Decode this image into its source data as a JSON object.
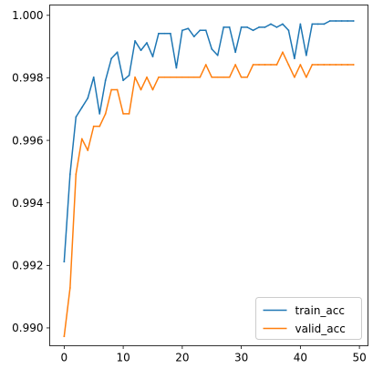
{
  "chart_data": {
    "type": "line",
    "title": "",
    "xlabel": "",
    "ylabel": "",
    "xlim": [
      -2.45,
      51.45
    ],
    "ylim": [
      0.98943,
      1.00033
    ],
    "xticks": [
      0,
      10,
      20,
      30,
      40,
      50
    ],
    "xtick_labels": [
      "0",
      "10",
      "20",
      "30",
      "40",
      "50"
    ],
    "yticks": [
      0.99,
      0.992,
      0.994,
      0.996,
      0.998,
      1.0
    ],
    "ytick_labels": [
      "0.990",
      "0.992",
      "0.994",
      "0.996",
      "0.998",
      "1.000"
    ],
    "grid": false,
    "legend_position": "lower right",
    "x": [
      0,
      1,
      2,
      3,
      4,
      5,
      6,
      7,
      8,
      9,
      10,
      11,
      12,
      13,
      14,
      15,
      16,
      17,
      18,
      19,
      20,
      21,
      22,
      23,
      24,
      25,
      26,
      27,
      28,
      29,
      30,
      31,
      32,
      33,
      34,
      35,
      36,
      37,
      38,
      39,
      40,
      41,
      42,
      43,
      44,
      45,
      46,
      47,
      48,
      49
    ],
    "series": [
      {
        "name": "train_acc",
        "color": "#1f77b4",
        "values": [
          0.99212,
          0.99492,
          0.99675,
          0.99705,
          0.99735,
          0.99802,
          0.99685,
          0.99792,
          0.99862,
          0.99882,
          0.99792,
          0.99808,
          0.99918,
          0.99888,
          0.99912,
          0.99868,
          0.99942,
          0.99942,
          0.99942,
          0.99832,
          0.99952,
          0.99958,
          0.99932,
          0.99952,
          0.99952,
          0.99892,
          0.99872,
          0.99962,
          0.99962,
          0.99882,
          0.99962,
          0.99962,
          0.99952,
          0.99962,
          0.99962,
          0.99972,
          0.99962,
          0.99972,
          0.99952,
          0.99862,
          0.99972,
          0.99872,
          0.99972,
          0.99972,
          0.99972,
          0.99982,
          0.99982,
          0.99982,
          0.99982,
          0.99982
        ]
      },
      {
        "name": "valid_acc",
        "color": "#ff7f0e",
        "values": [
          0.98973,
          0.99128,
          0.99492,
          0.99605,
          0.99568,
          0.99645,
          0.99645,
          0.99685,
          0.99762,
          0.99762,
          0.99685,
          0.99685,
          0.99802,
          0.99762,
          0.99802,
          0.99762,
          0.99802,
          0.99802,
          0.99802,
          0.99802,
          0.99802,
          0.99802,
          0.99802,
          0.99802,
          0.99842,
          0.99802,
          0.99802,
          0.99802,
          0.99802,
          0.99842,
          0.99802,
          0.99802,
          0.99842,
          0.99842,
          0.99842,
          0.99842,
          0.99842,
          0.99882,
          0.99842,
          0.99802,
          0.99842,
          0.99802,
          0.99842,
          0.99842,
          0.99842,
          0.99842,
          0.99842,
          0.99842,
          0.99842,
          0.99842
        ]
      }
    ]
  }
}
